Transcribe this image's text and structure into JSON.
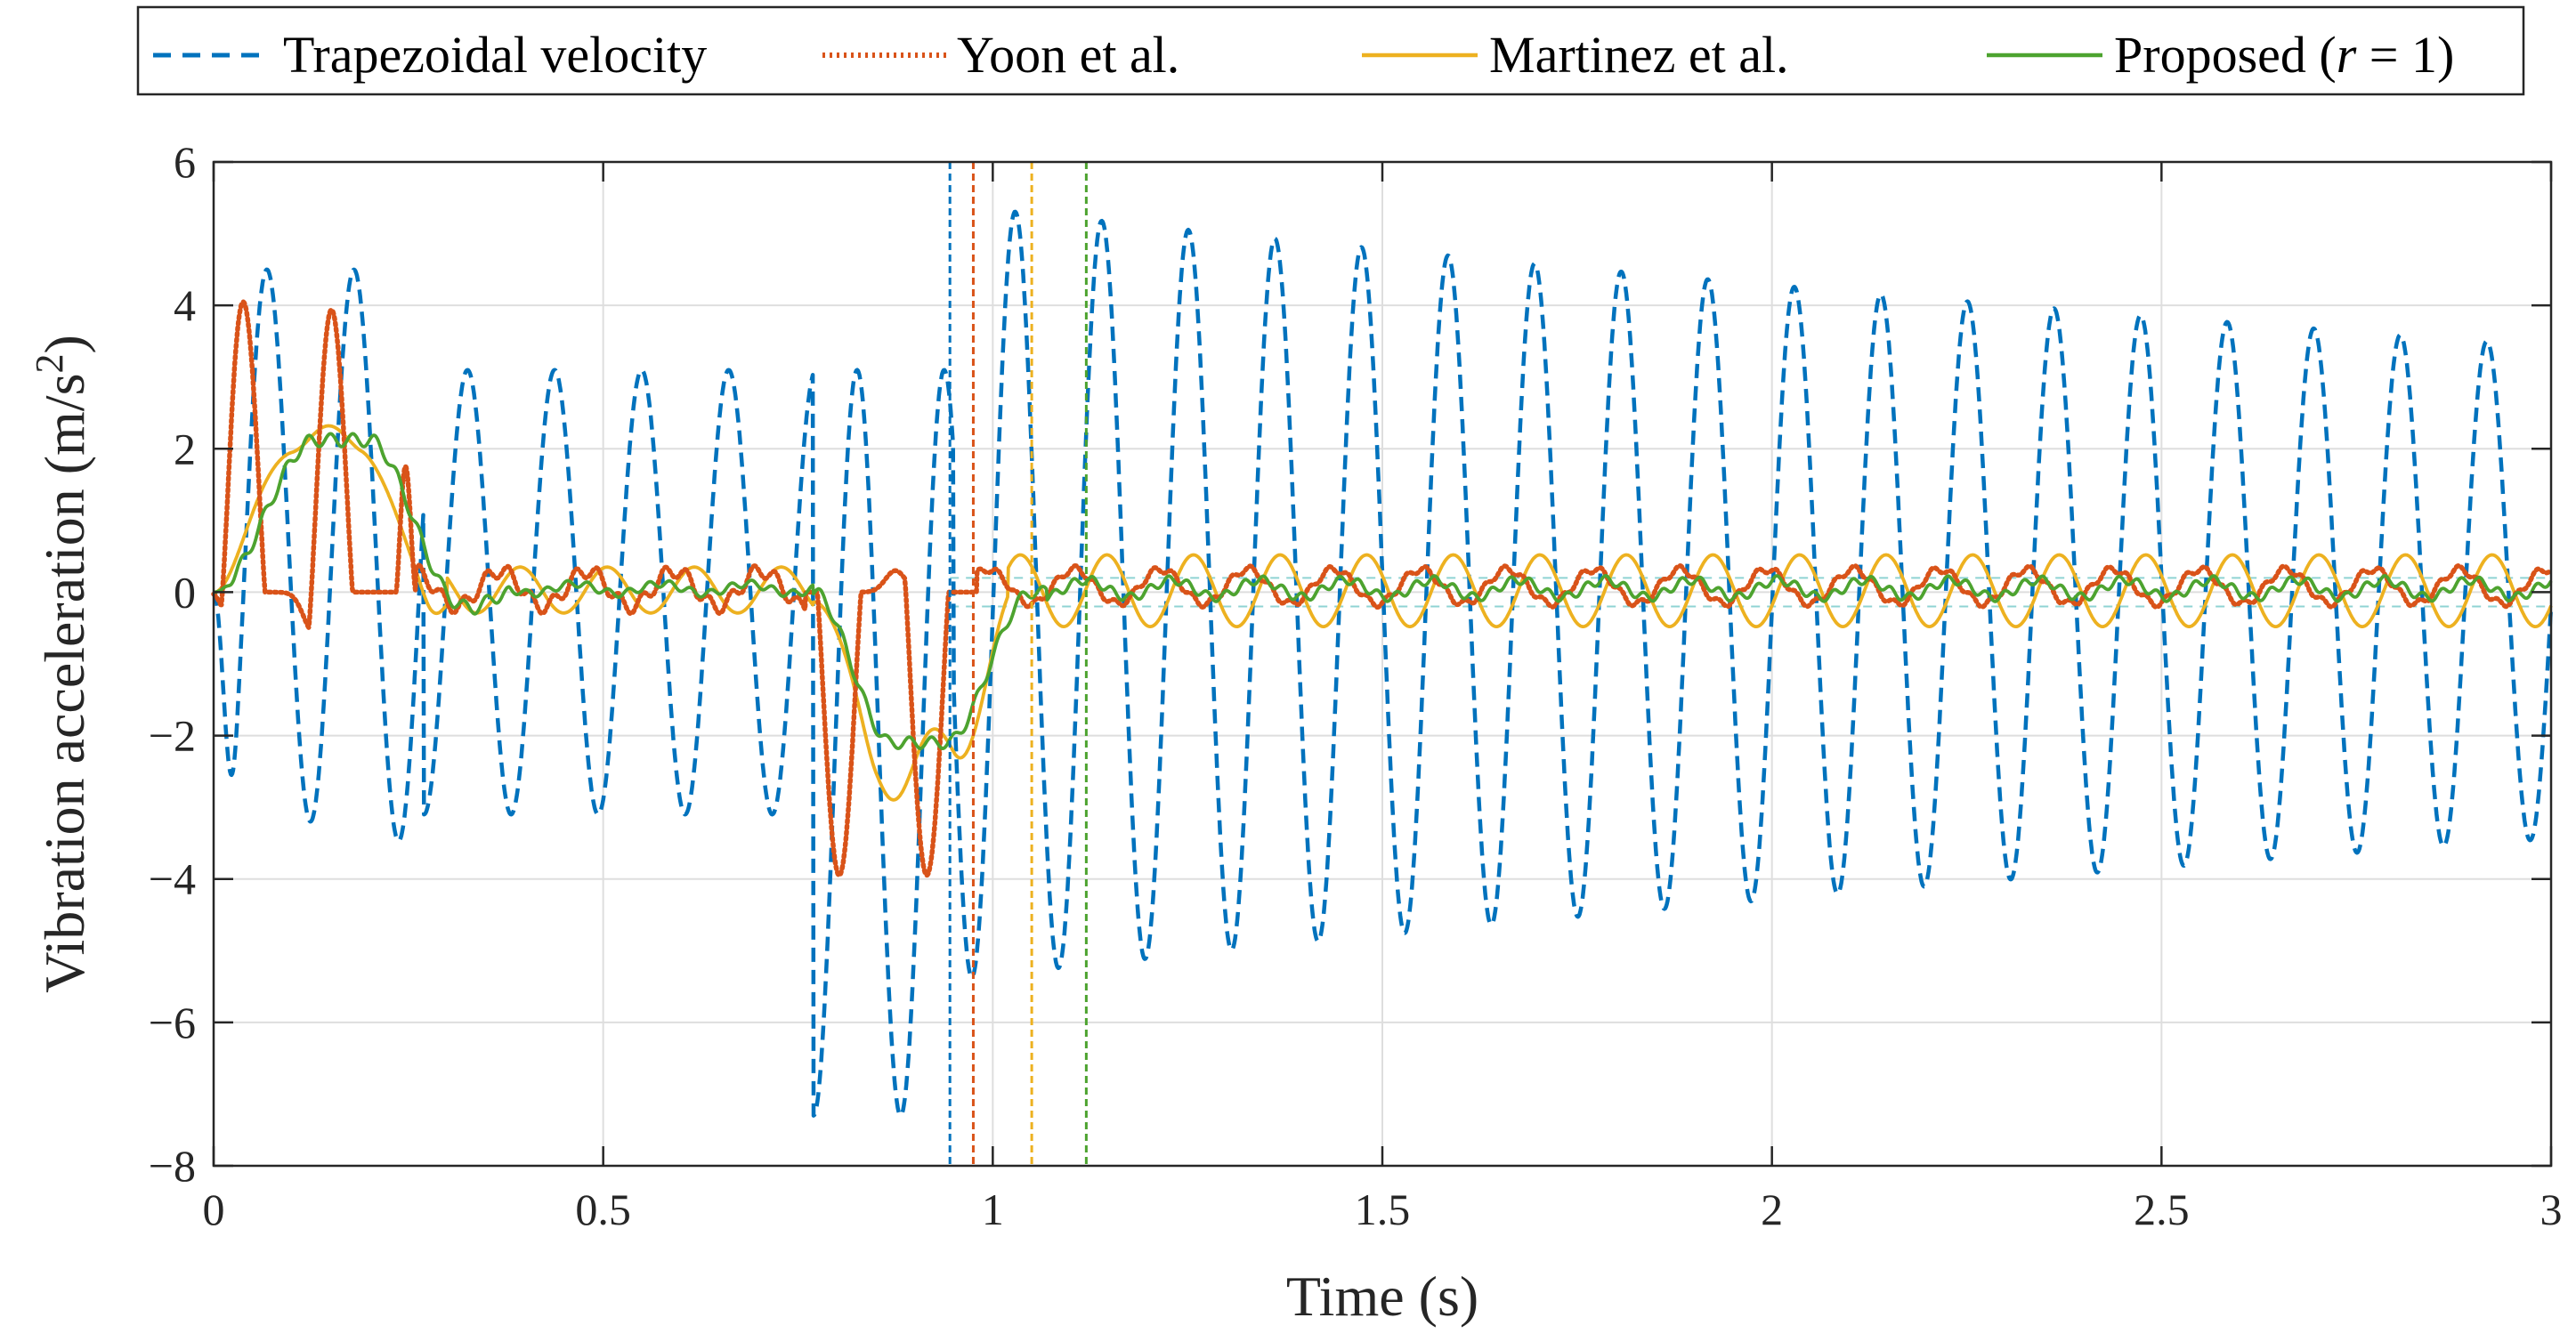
{
  "chart_data": {
    "type": "line",
    "xlabel": "Time (s)",
    "ylabel": "Vibration acceleration (m/s",
    "ylabel_sup": "2",
    "ylabel_close": ")",
    "xlim": [
      0,
      3
    ],
    "ylim": [
      -8,
      6
    ],
    "grid": true,
    "legend_position": "top",
    "x_ticks": [
      0,
      0.5,
      1,
      1.5,
      2,
      2.5,
      3
    ],
    "x_tick_labels": [
      "0",
      "0.5",
      "1",
      "1.5",
      "2",
      "2.5",
      "3"
    ],
    "y_ticks": [
      -8,
      -6,
      -4,
      -2,
      0,
      2,
      4,
      6
    ],
    "y_tick_labels": [
      "−8",
      "−6",
      "−4",
      "−2",
      "0",
      "2",
      "4",
      "6"
    ],
    "legend": {
      "trapezoidal": "Trapezoidal velocity",
      "yoon": "Yoon et al.",
      "martinez": "Martinez et al.",
      "proposed": "Proposed (",
      "proposed_var": "r",
      "proposed_rest": " = 1)"
    },
    "series": [
      {
        "key": "trapezoidal",
        "name": "Trapezoidal velocity",
        "color": "#0072BD",
        "style": "dashed",
        "description": "Lightly damped oscillation ~9 Hz; about +4.5/-3.2 during acceleration (0-0.27 s), ~+/-3 during cruise, about -7.3 during deceleration (0.77-0.95 s), then free residual vibration decaying from ~+/-5.5 at 1.0 s to ~+/-3.5 at 3.0 s",
        "stop_time": 0.945
      },
      {
        "key": "yoon",
        "name": "Yoon et al.",
        "color": "#D95319",
        "style": "dotted",
        "description": "Peaks ~+4.0 at 0.07 and 0.19 s, ~-3.9 at 0.82 and 0.93 s; residual ~+/-0.3",
        "stop_time": 0.975
      },
      {
        "key": "martinez",
        "name": "Martinez et al.",
        "color": "#EDB120",
        "style": "solid",
        "description": "Smooth hump ~+2.3 during acceleration, ~-2.6 during deceleration; residual ~+/-0.5",
        "stop_time": 1.05
      },
      {
        "key": "proposed",
        "name": "Proposed (r = 1)",
        "color": "#4DA32F",
        "style": "solid",
        "description": "Smooth hump ~+2.15 during acceleration, ~-2.1 during deceleration; residual ~+/-0.15",
        "stop_time": 1.12
      }
    ],
    "residual_band": [
      -0.2,
      0.2
    ]
  }
}
